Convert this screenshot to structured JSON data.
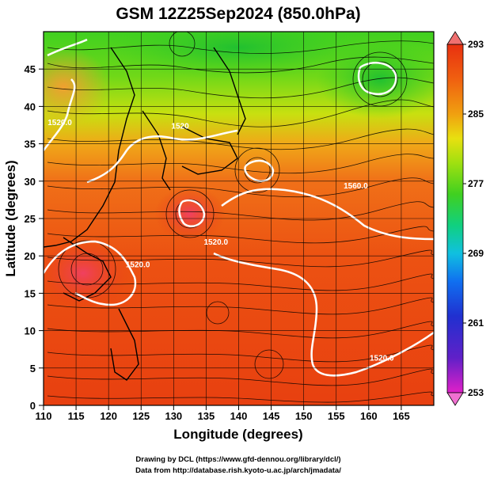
{
  "chart_data": {
    "type": "heatmap",
    "title": "GSM 12Z25Sep2024 (850.0hPa)",
    "xlabel": "Longitude (degrees)",
    "ylabel": "Latitude  (degrees)",
    "xlim": [
      110,
      170
    ],
    "ylim": [
      0,
      50
    ],
    "xticks": [
      "110",
      "115",
      "120",
      "125",
      "130",
      "135",
      "140",
      "145",
      "150",
      "155",
      "160",
      "165"
    ],
    "yticks": [
      "0",
      "5",
      "10",
      "15",
      "20",
      "25",
      "30",
      "35",
      "40",
      "45"
    ],
    "grid": true,
    "colorbar": {
      "ticks": [
        "293",
        "285",
        "277",
        "269",
        "261",
        "253"
      ],
      "range": [
        253,
        293
      ],
      "colors_low_to_high": [
        "#e020c8",
        "#3030d0",
        "#1070f0",
        "#10c0e0",
        "#20d060",
        "#70e010",
        "#e0e010",
        "#f0a010",
        "#f06010",
        "#e83010"
      ]
    },
    "contour_labels": [
      {
        "text": "1520.0",
        "lon": 112.5,
        "lat": 37.5
      },
      {
        "text": "1560.0",
        "lon": 158,
        "lat": 29
      },
      {
        "text": "1520.0",
        "lon": 136.5,
        "lat": 21.5
      },
      {
        "text": "1520.0",
        "lon": 124.5,
        "lat": 18.5
      },
      {
        "text": "1520.0",
        "lon": 162,
        "lat": 6
      },
      {
        "text": "1520",
        "lon": 131,
        "lat": 37
      }
    ]
  },
  "credits": {
    "line1": "Drawing by DCL (https://www.gfd-dennou.org/library/dcl/)",
    "line2": "Data from http://database.rish.kyoto-u.ac.jp/arch/jmadata/"
  }
}
